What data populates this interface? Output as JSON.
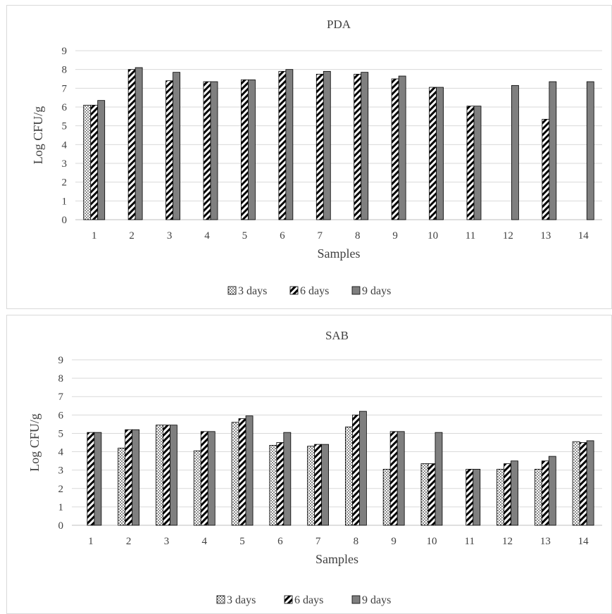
{
  "chart_data": [
    {
      "type": "bar",
      "title": "PDA",
      "xlabel": "Samples",
      "ylabel": "Log CFU/g",
      "ylim": [
        0,
        9
      ],
      "yticks": [
        "0",
        "1",
        "2",
        "3",
        "4",
        "5",
        "6",
        "7",
        "8",
        "9"
      ],
      "categories": [
        "1",
        "2",
        "3",
        "4",
        "5",
        "6",
        "7",
        "8",
        "9",
        "10",
        "11",
        "12",
        "13",
        "14"
      ],
      "legend_position": "bottom",
      "grid": true,
      "series": [
        {
          "name": "3 days",
          "pattern": "dots",
          "values": [
            6.1,
            0,
            0,
            0,
            0,
            0,
            0,
            0,
            0,
            0,
            0,
            0,
            0,
            0
          ]
        },
        {
          "name": "6 days",
          "pattern": "stripes",
          "values": [
            6.1,
            8.0,
            7.4,
            7.35,
            7.45,
            7.9,
            7.75,
            7.75,
            7.5,
            7.05,
            6.05,
            0,
            5.35,
            0
          ]
        },
        {
          "name": "9 days",
          "pattern": "solid",
          "values": [
            6.35,
            8.1,
            7.85,
            7.35,
            7.45,
            8.0,
            7.9,
            7.85,
            7.65,
            7.05,
            6.05,
            7.15,
            7.35,
            7.35
          ]
        }
      ]
    },
    {
      "type": "bar",
      "title": "SAB",
      "xlabel": "Samples",
      "ylabel": "Log CFU/g",
      "ylim": [
        0,
        9
      ],
      "yticks": [
        "0",
        "1",
        "2",
        "3",
        "4",
        "5",
        "6",
        "7",
        "8",
        "9"
      ],
      "categories": [
        "1",
        "2",
        "3",
        "4",
        "5",
        "6",
        "7",
        "8",
        "9",
        "10",
        "11",
        "12",
        "13",
        "14"
      ],
      "legend_position": "bottom",
      "grid": true,
      "series": [
        {
          "name": "3 days",
          "pattern": "dots",
          "values": [
            0,
            4.2,
            5.45,
            4.05,
            5.6,
            4.35,
            4.3,
            5.35,
            3.05,
            3.35,
            0,
            3.05,
            3.05,
            4.55
          ]
        },
        {
          "name": "6 days",
          "pattern": "stripes",
          "values": [
            5.05,
            5.2,
            5.45,
            5.1,
            5.8,
            4.5,
            4.4,
            6.0,
            5.1,
            3.35,
            3.05,
            3.35,
            3.5,
            4.5
          ]
        },
        {
          "name": "9 days",
          "pattern": "solid",
          "values": [
            5.05,
            5.2,
            5.45,
            5.1,
            5.95,
            5.05,
            4.4,
            6.2,
            5.1,
            5.05,
            3.05,
            3.5,
            3.75,
            4.6
          ]
        }
      ]
    }
  ],
  "colors": {
    "bar_fill_solid": "#7f7f7f",
    "bar_outline": "#000000",
    "gridline": "#d9d9d9",
    "text": "#404040"
  }
}
